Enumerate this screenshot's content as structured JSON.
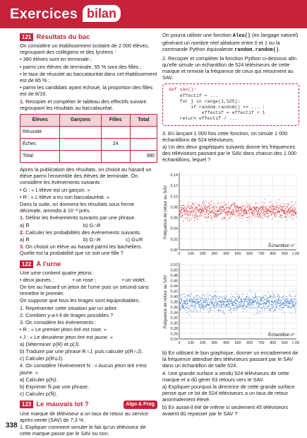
{
  "header": {
    "word1": "Exercices",
    "word2": "bilan"
  },
  "page_number": "338",
  "ex121": {
    "num": "121",
    "title": "Résultats du bac",
    "intro": "On considère un établissement scolaire de 2 000 élèves, regroupant des collégiens et des lycéens :",
    "bullets": [
      "• 380 élèves sont en terminale ;",
      "• parmi ces élèves de terminale, 55 % sont des filles ;",
      "• le taux de réussite au baccalauréat dans cet établissement est de 85 % ;",
      "• parmi les candidats ayant échoué, la proportion des filles est de 8/19."
    ],
    "q1n": "1.",
    "q1": "Recopier et compléter le tableau des effectifs suivant regroupant les résultats au baccalauréat.",
    "table": {
      "headers": [
        "Élèves",
        "Garçons",
        "Filles",
        "Total"
      ],
      "rows": [
        [
          "Réussite",
          "",
          "",
          ""
        ],
        [
          "Échec",
          "",
          "24",
          ""
        ],
        [
          "Total",
          "",
          "",
          "380"
        ]
      ]
    },
    "after": "Après la publication des résultats, on choisit au hasard un élève parmi l'ensemble des élèves de terminale. On considère les événements suivants :",
    "evG": "• G : « L'élève est un garçon. »",
    "evR": "• R : « L'élève a eu son baccalauréat. »",
    "round": "Dans la suite, on donnera les résultats sous forme décimale, arrondis à 10⁻² près.",
    "q1bn": "1.",
    "q1b": "Définir les événements suivants par une phrase.",
    "q1b_a": "a) R̄",
    "q1b_b": "b) G∩R",
    "q2n": "2.",
    "q2": "Calculer les probabilités des événements suivants.",
    "q2_a": "a) R̄",
    "q2_b": "b) G∩R",
    "q2_c": "c) G∪R",
    "q3n": "3.",
    "q3": "On choisit un élève au hasard parmi les bacheliers. Quelle est la probabilité que ce soit une fille ?"
  },
  "ex122": {
    "num": "122",
    "title": "À l'urne",
    "intro": "Une urne contient quatre jetons :",
    "items": [
      "• deux jaunes ;",
      "• un rose ;",
      "• un violet."
    ],
    "text1": "On tire au hasard un jeton de l'urne puis un second sans remettre le premier.",
    "text2": "On suppose que tous les tirages sont équiprobables.",
    "q1": "1. Représenter cette situation par un arbre.",
    "q2": "2. Combien y-a-t-il de tirages possibles ?",
    "q3": "3. On considère les événements :",
    "evR": "• R : « Le premier jeton tiré est rose. »",
    "evJ": "• J : « Le deuxième jeton tiré est jaune. »",
    "qa": "a) Déterminer p(R) et p(J).",
    "qb": "b) Traduire par une phrase R∩J, puis calculer p(R∩J).",
    "qc": "c) Calculer p(R∪J).",
    "q4": "4. On considère l'événement N : « Aucun jeton tiré n'est jaune. »",
    "q4a": "a) Calculer p(N).",
    "q4b": "b) Exprimer N̄ par une phrase.",
    "q4c": "c) Calculer p(N̄)."
  },
  "ex123": {
    "num": "123",
    "title": "Le mauvais lot ?",
    "tag": "Algo & Prog",
    "intro": "Une marque de téléviseur a un taux de retour au service après-vente (SAV) de 7,3 %.",
    "q1": "1. Expliquer comment simuler le fait qu'un téléviseur de cette marque passe par le SAV ou non.",
    "cont1": "On pourra utiliser une fonction ",
    "alea": "Alea()",
    "cont2": " (en langage naturel) générant un nombre réel aléatoire entre 0 et 1 ou la commande Python équivalente ",
    "rr": "random.random()",
    "cont3": ".",
    "q2": "2. Recopier et compléter la fonction Python ci-dessous afin qu'elle simule un échantillon de 524 téléviseurs de cette marque et renvoie la fréquence de ceux qui retournent au SAV.",
    "code": [
      "def sav():",
      "    effectif = ...",
      "    for j in range(1,525):",
      "        if random.random() <= ... :",
      "            effectif = effectif + 1",
      "    return effectif / ..."
    ],
    "q3": "3. En lançant 1 000 fois cette fonction, on simule 1 000 échantillons de 524 téléviseurs.",
    "q3a": "a) Un des deux graphiques suivants donne les fréquences des téléviseurs passant par le SAV dans chacun des 1 000 échantillons, lequel ?",
    "q3b": "b) En utilisant le bon graphique, donner un encadrement de la fréquence attendue des téléviseurs passant par le SAV dans un échantillon de taille 524.",
    "q4": "4. Une grande surface a vendu 524 téléviseurs de cette marque et a dû gérer 63 retours vers le SAV.",
    "q4a": "a) Expliquer pourquoi la directrice de cette grande surface pense que ce lot de 524 téléviseurs a un taux de retour anormalement élevé.",
    "q4b": "b) En aurait-il été de même si seulement 45 téléviseurs avaient dû repasser par le SAV ?"
  },
  "chart_data": [
    {
      "type": "scatter",
      "ylabel": "Fréquence de retour au SAV",
      "xlabel": "Échantillon n°",
      "xlim": [
        0,
        1000
      ],
      "ylim": [
        0,
        0.14
      ],
      "xticks": [
        0,
        100,
        200,
        300,
        400,
        500,
        600,
        700,
        800,
        900,
        1000
      ],
      "yticks": [
        "0,00",
        "0,02",
        "0,04",
        "0,06",
        "0,08",
        "0,10",
        "0,12",
        "0,14"
      ],
      "point_count": 1000,
      "center": 0.073,
      "spread": [
        0.05,
        0.1
      ],
      "color": "#d8232a",
      "grid": true
    },
    {
      "type": "scatter",
      "ylabel": "Fréquence de retour au SAV",
      "xlabel": "Échantillon n°",
      "xlim": [
        0,
        1000
      ],
      "ylim": [
        0.24,
        0.52
      ],
      "xticks": [
        0,
        100,
        200,
        300,
        400,
        500,
        600,
        700,
        800,
        900,
        1000
      ],
      "yticks": [
        "0,24",
        "0,26",
        "0,28",
        "0,30",
        "0,32",
        "0,34",
        "0,36",
        "0,38",
        "0,40",
        "0,42",
        "0,44",
        "0,46",
        "0,48",
        "0,50",
        "0,52"
      ],
      "point_count": 1000,
      "center": 0.375,
      "spread": [
        0.32,
        0.43
      ],
      "color": "#2a6fc9",
      "grid": true
    }
  ]
}
